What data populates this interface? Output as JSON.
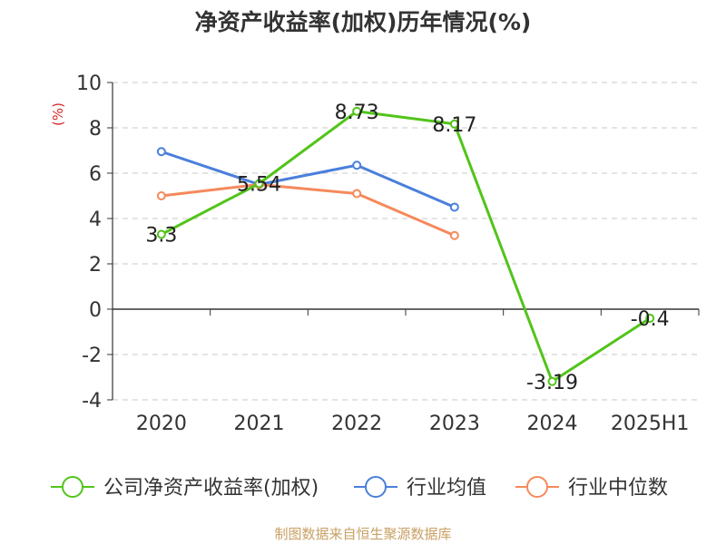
{
  "chart_data": {
    "type": "line",
    "title": "净资产收益率(加权)历年情况(%)",
    "ylabel": "(%)",
    "categories": [
      "2020",
      "2021",
      "2022",
      "2023",
      "2024",
      "2025H1"
    ],
    "y_ticks": [
      "10",
      "8",
      "6",
      "4",
      "2",
      "0",
      "-2",
      "-4"
    ],
    "ylim": [
      -4,
      10
    ],
    "grid": true,
    "legend_position": "bottom",
    "series": [
      {
        "name": "公司净资产收益率(加权)",
        "color": "#52c41a",
        "values": [
          3.3,
          5.54,
          8.73,
          8.17,
          -3.19,
          -0.4
        ],
        "labels": [
          "3.3",
          "5.54",
          "8.73",
          "8.17",
          "-3.19",
          "-0.4"
        ]
      },
      {
        "name": "行业均值",
        "color": "#4a7fdc",
        "values": [
          6.95,
          5.5,
          6.35,
          4.5,
          null,
          null
        ]
      },
      {
        "name": "行业中位数",
        "color": "#f5895c",
        "values": [
          5.0,
          5.5,
          5.1,
          3.25,
          null,
          null
        ]
      }
    ]
  },
  "source": "制图数据来自恒生聚源数据库"
}
